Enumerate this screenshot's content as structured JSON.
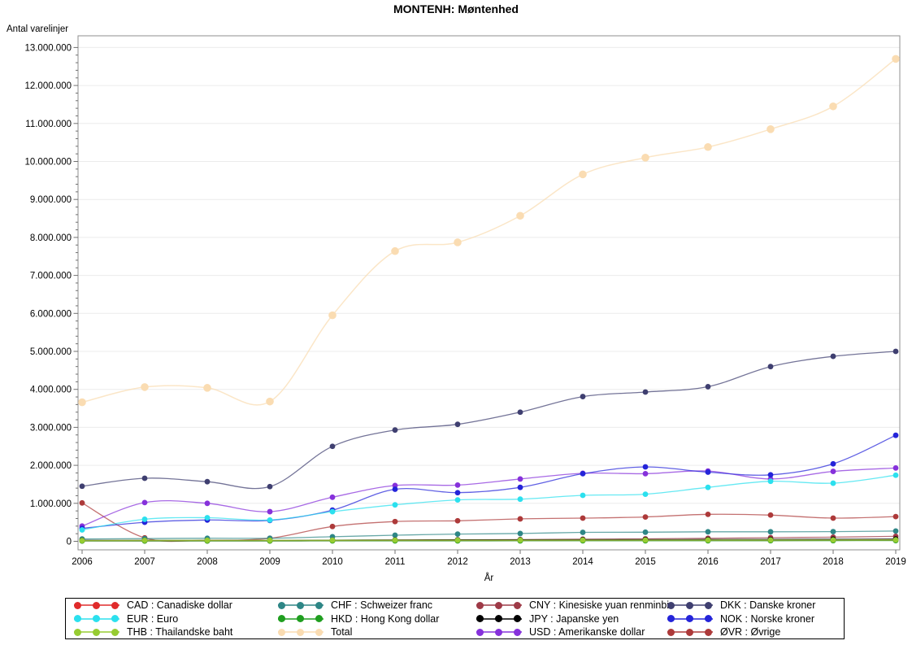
{
  "title": "MONTENH: Møntenhed",
  "chart_data": {
    "type": "line",
    "title": "MONTENH: Møntenhed",
    "xlabel": "År",
    "ylabel": "Antal varelinjer",
    "x": [
      2006,
      2007,
      2008,
      2009,
      2010,
      2011,
      2012,
      2013,
      2014,
      2015,
      2016,
      2017,
      2018,
      2019
    ],
    "ylim": [
      0,
      13000000
    ],
    "y_major_step": 1000000,
    "y_minor_step": 200000,
    "grid": "horizontal-major",
    "legend_position": "bottom-box",
    "series": [
      {
        "id": "CAD",
        "label": "CAD : Canadiske dollar",
        "color": "#e02b2b",
        "values": [
          15000,
          15000,
          15000,
          12000,
          18000,
          20000,
          20000,
          20000,
          22000,
          22000,
          22000,
          22000,
          24000,
          26000
        ]
      },
      {
        "id": "CHF",
        "label": "CHF : Schweizer franc",
        "color": "#2e8686",
        "values": [
          60000,
          70000,
          80000,
          80000,
          120000,
          160000,
          190000,
          205000,
          235000,
          240000,
          250000,
          250000,
          255000,
          270000
        ]
      },
      {
        "id": "CNY",
        "label": "CNY : Kinesiske yuan renminbi",
        "color": "#9e3a47",
        "values": [
          10000,
          10000,
          12000,
          15000,
          25000,
          35000,
          40000,
          45000,
          55000,
          65000,
          80000,
          95000,
          110000,
          130000
        ]
      },
      {
        "id": "DKK",
        "label": "DKK : Danske kroner",
        "color": "#3f3f70",
        "values": [
          1450000,
          1660000,
          1570000,
          1440000,
          2500000,
          2930000,
          3080000,
          3400000,
          3810000,
          3930000,
          4070000,
          4600000,
          4870000,
          5000000
        ]
      },
      {
        "id": "EUR",
        "label": "EUR : Euro",
        "color": "#2be0ee",
        "values": [
          300000,
          580000,
          620000,
          560000,
          780000,
          960000,
          1090000,
          1110000,
          1210000,
          1240000,
          1420000,
          1580000,
          1530000,
          1740000
        ]
      },
      {
        "id": "HKD",
        "label": "HKD : Hong Kong dollar",
        "color": "#1f9e1f",
        "values": [
          8000,
          8000,
          8000,
          8000,
          10000,
          10000,
          11000,
          12000,
          13000,
          14000,
          15000,
          16000,
          18000,
          20000
        ]
      },
      {
        "id": "JPY",
        "label": "JPY : Japanske yen",
        "color": "#000000",
        "values": [
          25000,
          25000,
          24000,
          22000,
          30000,
          35000,
          38000,
          40000,
          43000,
          45000,
          48000,
          50000,
          55000,
          60000
        ]
      },
      {
        "id": "NOK",
        "label": "NOK : Norske kroner",
        "color": "#2424d9",
        "values": [
          340000,
          500000,
          560000,
          550000,
          820000,
          1370000,
          1280000,
          1420000,
          1780000,
          1960000,
          1820000,
          1750000,
          2040000,
          2790000
        ]
      },
      {
        "id": "THB",
        "label": "THB : Thailandske baht",
        "color": "#97cc32",
        "values": [
          20000,
          24000,
          25000,
          25000,
          28000,
          30000,
          30000,
          31000,
          32000,
          32000,
          33000,
          34000,
          35000,
          38000
        ]
      },
      {
        "id": "TOTAL",
        "label": "Total",
        "color": "#fadcb2",
        "marker_r": 4.8,
        "values": [
          3660000,
          4060000,
          4040000,
          3680000,
          5950000,
          7640000,
          7870000,
          8570000,
          9660000,
          10100000,
          10380000,
          10850000,
          11450000,
          12700000
        ]
      },
      {
        "id": "USD",
        "label": "USD : Amerikanske dollar",
        "color": "#8631db",
        "values": [
          400000,
          1020000,
          1000000,
          780000,
          1160000,
          1470000,
          1480000,
          1640000,
          1790000,
          1780000,
          1850000,
          1640000,
          1840000,
          1930000
        ]
      },
      {
        "id": "OVR",
        "label": "ØVR : Øvrige",
        "color": "#ad3a3a",
        "values": [
          1010000,
          90000,
          30000,
          80000,
          390000,
          520000,
          540000,
          590000,
          610000,
          640000,
          710000,
          690000,
          610000,
          650000
        ]
      }
    ],
    "z_order": [
      "TOTAL",
      "DKK",
      "OVR",
      "USD",
      "NOK",
      "EUR",
      "CHF",
      "CNY",
      "JPY",
      "CAD",
      "HKD",
      "THB"
    ]
  }
}
